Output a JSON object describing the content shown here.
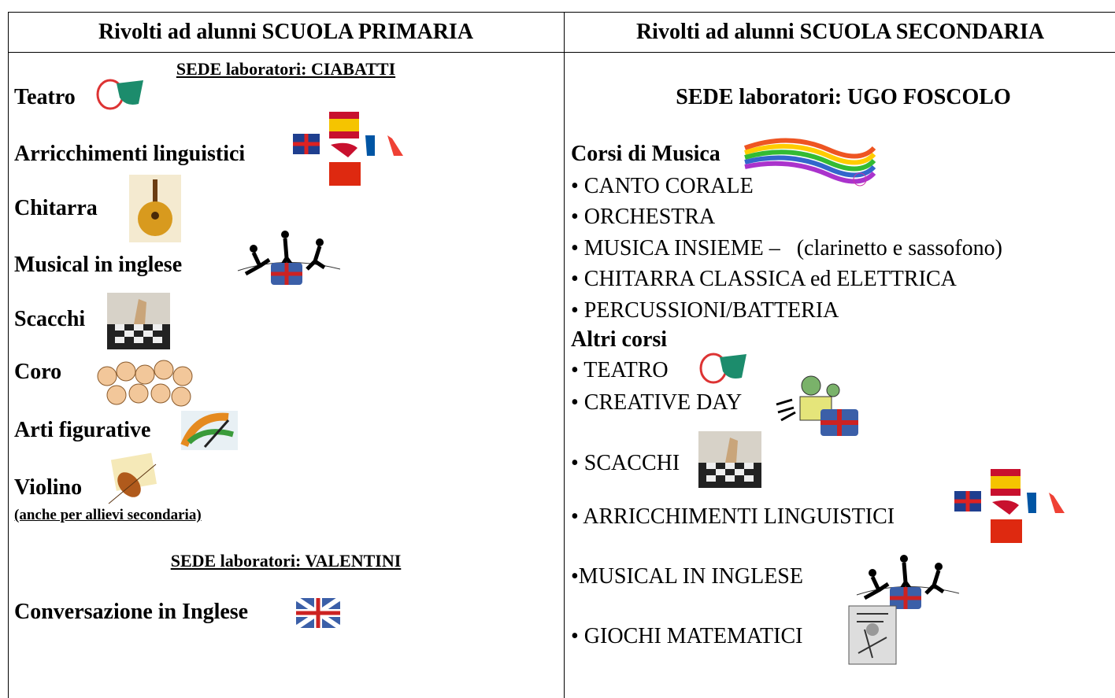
{
  "table": {
    "headers": [
      "Rivolti ad alunni SCUOLA PRIMARIA",
      "Rivolti ad alunni SCUOLA SECONDARIA"
    ],
    "primaria": {
      "sede_1": "SEDE laboratori: CIABATTI",
      "items": [
        "Teatro",
        "Arricchimenti linguistici",
        "Chitarra",
        "Musical in inglese",
        "Scacchi",
        "Coro",
        "Arti figurative",
        "Violino"
      ],
      "note": "(anche per allievi secondaria)",
      "sede_2": "SEDE laboratori: VALENTINI",
      "items_2": [
        "Conversazione in Inglese"
      ]
    },
    "secondaria": {
      "sede": "SEDE laboratori: UGO FOSCOLO",
      "musica_title": "Corsi di Musica",
      "musica": [
        "• CANTO CORALE",
        "• ORCHESTRA",
        "• MUSICA INSIEME –   (clarinetto e sassofono)",
        "• CHITARRA CLASSICA ed ELETTRICA",
        "• PERCUSSIONI/BATTERIA"
      ],
      "altri_title": "Altri corsi",
      "altri": [
        "• TEATRO",
        "• CREATIVE DAY",
        "• SCACCHI",
        "• ARRICCHIMENTI LINGUISTICI",
        "•MUSICAL IN INGLESE",
        "• GIOCHI MATEMATICI"
      ]
    }
  }
}
